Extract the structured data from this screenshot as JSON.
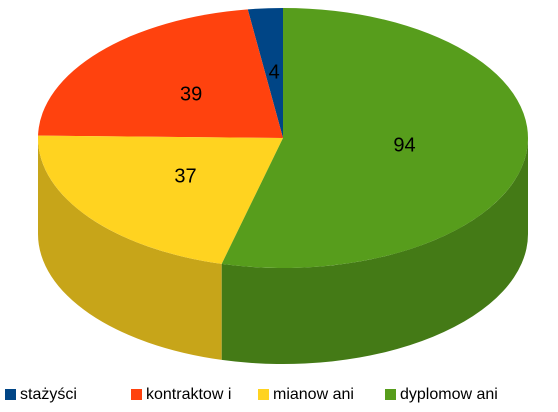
{
  "chart_data": {
    "type": "pie3d",
    "categories": [
      "stażyści",
      "kontraktow i",
      "mianow ani",
      "dyplomow ani"
    ],
    "values": [
      4,
      39,
      37,
      94
    ],
    "colors": [
      "#004586",
      "#ff420e",
      "#ffd320",
      "#579d1c"
    ],
    "legend": "bottom"
  }
}
